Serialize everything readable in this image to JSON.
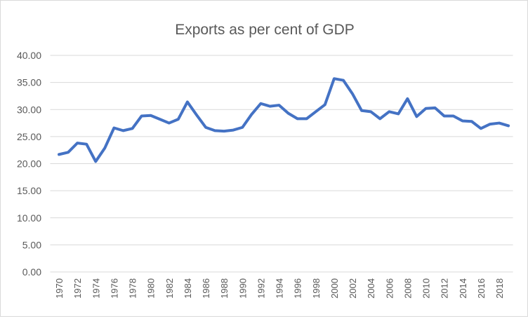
{
  "chart_data": {
    "type": "line",
    "title": "Exports as per cent of GDP",
    "xlabel": "",
    "ylabel": "",
    "ylim": [
      0,
      40
    ],
    "yticks": [
      "0.00",
      "5.00",
      "10.00",
      "15.00",
      "20.00",
      "25.00",
      "30.00",
      "35.00",
      "40.00"
    ],
    "grid": true,
    "legend": "none",
    "line_color": "#4472C4",
    "x": [
      1970,
      1971,
      1972,
      1973,
      1974,
      1975,
      1976,
      1977,
      1978,
      1979,
      1980,
      1981,
      1982,
      1983,
      1984,
      1985,
      1986,
      1987,
      1988,
      1989,
      1990,
      1991,
      1992,
      1993,
      1994,
      1995,
      1996,
      1997,
      1998,
      1999,
      2000,
      2001,
      2002,
      2003,
      2004,
      2005,
      2006,
      2007,
      2008,
      2009,
      2010,
      2011,
      2012,
      2013,
      2014,
      2015,
      2016,
      2017,
      2018,
      2019
    ],
    "values": [
      21.7,
      22.1,
      23.8,
      23.6,
      20.4,
      22.9,
      26.6,
      26.1,
      26.5,
      28.8,
      28.9,
      28.2,
      27.5,
      28.2,
      31.4,
      29.0,
      26.7,
      26.1,
      26.0,
      26.2,
      26.7,
      29.1,
      31.1,
      30.6,
      30.8,
      29.3,
      28.3,
      28.3,
      29.6,
      30.9,
      35.7,
      35.4,
      32.9,
      29.8,
      29.6,
      28.3,
      29.6,
      29.2,
      32.0,
      28.7,
      30.2,
      30.3,
      28.8,
      28.8,
      27.9,
      27.8,
      26.5,
      27.3,
      27.5,
      27.0
    ],
    "xtick_labels": [
      "1970",
      "1972",
      "1974",
      "1976",
      "1978",
      "1980",
      "1982",
      "1984",
      "1986",
      "1988",
      "1990",
      "1992",
      "1994",
      "1996",
      "1998",
      "2000",
      "2002",
      "2004",
      "2006",
      "2008",
      "2010",
      "2012",
      "2014",
      "2016",
      "2018"
    ]
  }
}
